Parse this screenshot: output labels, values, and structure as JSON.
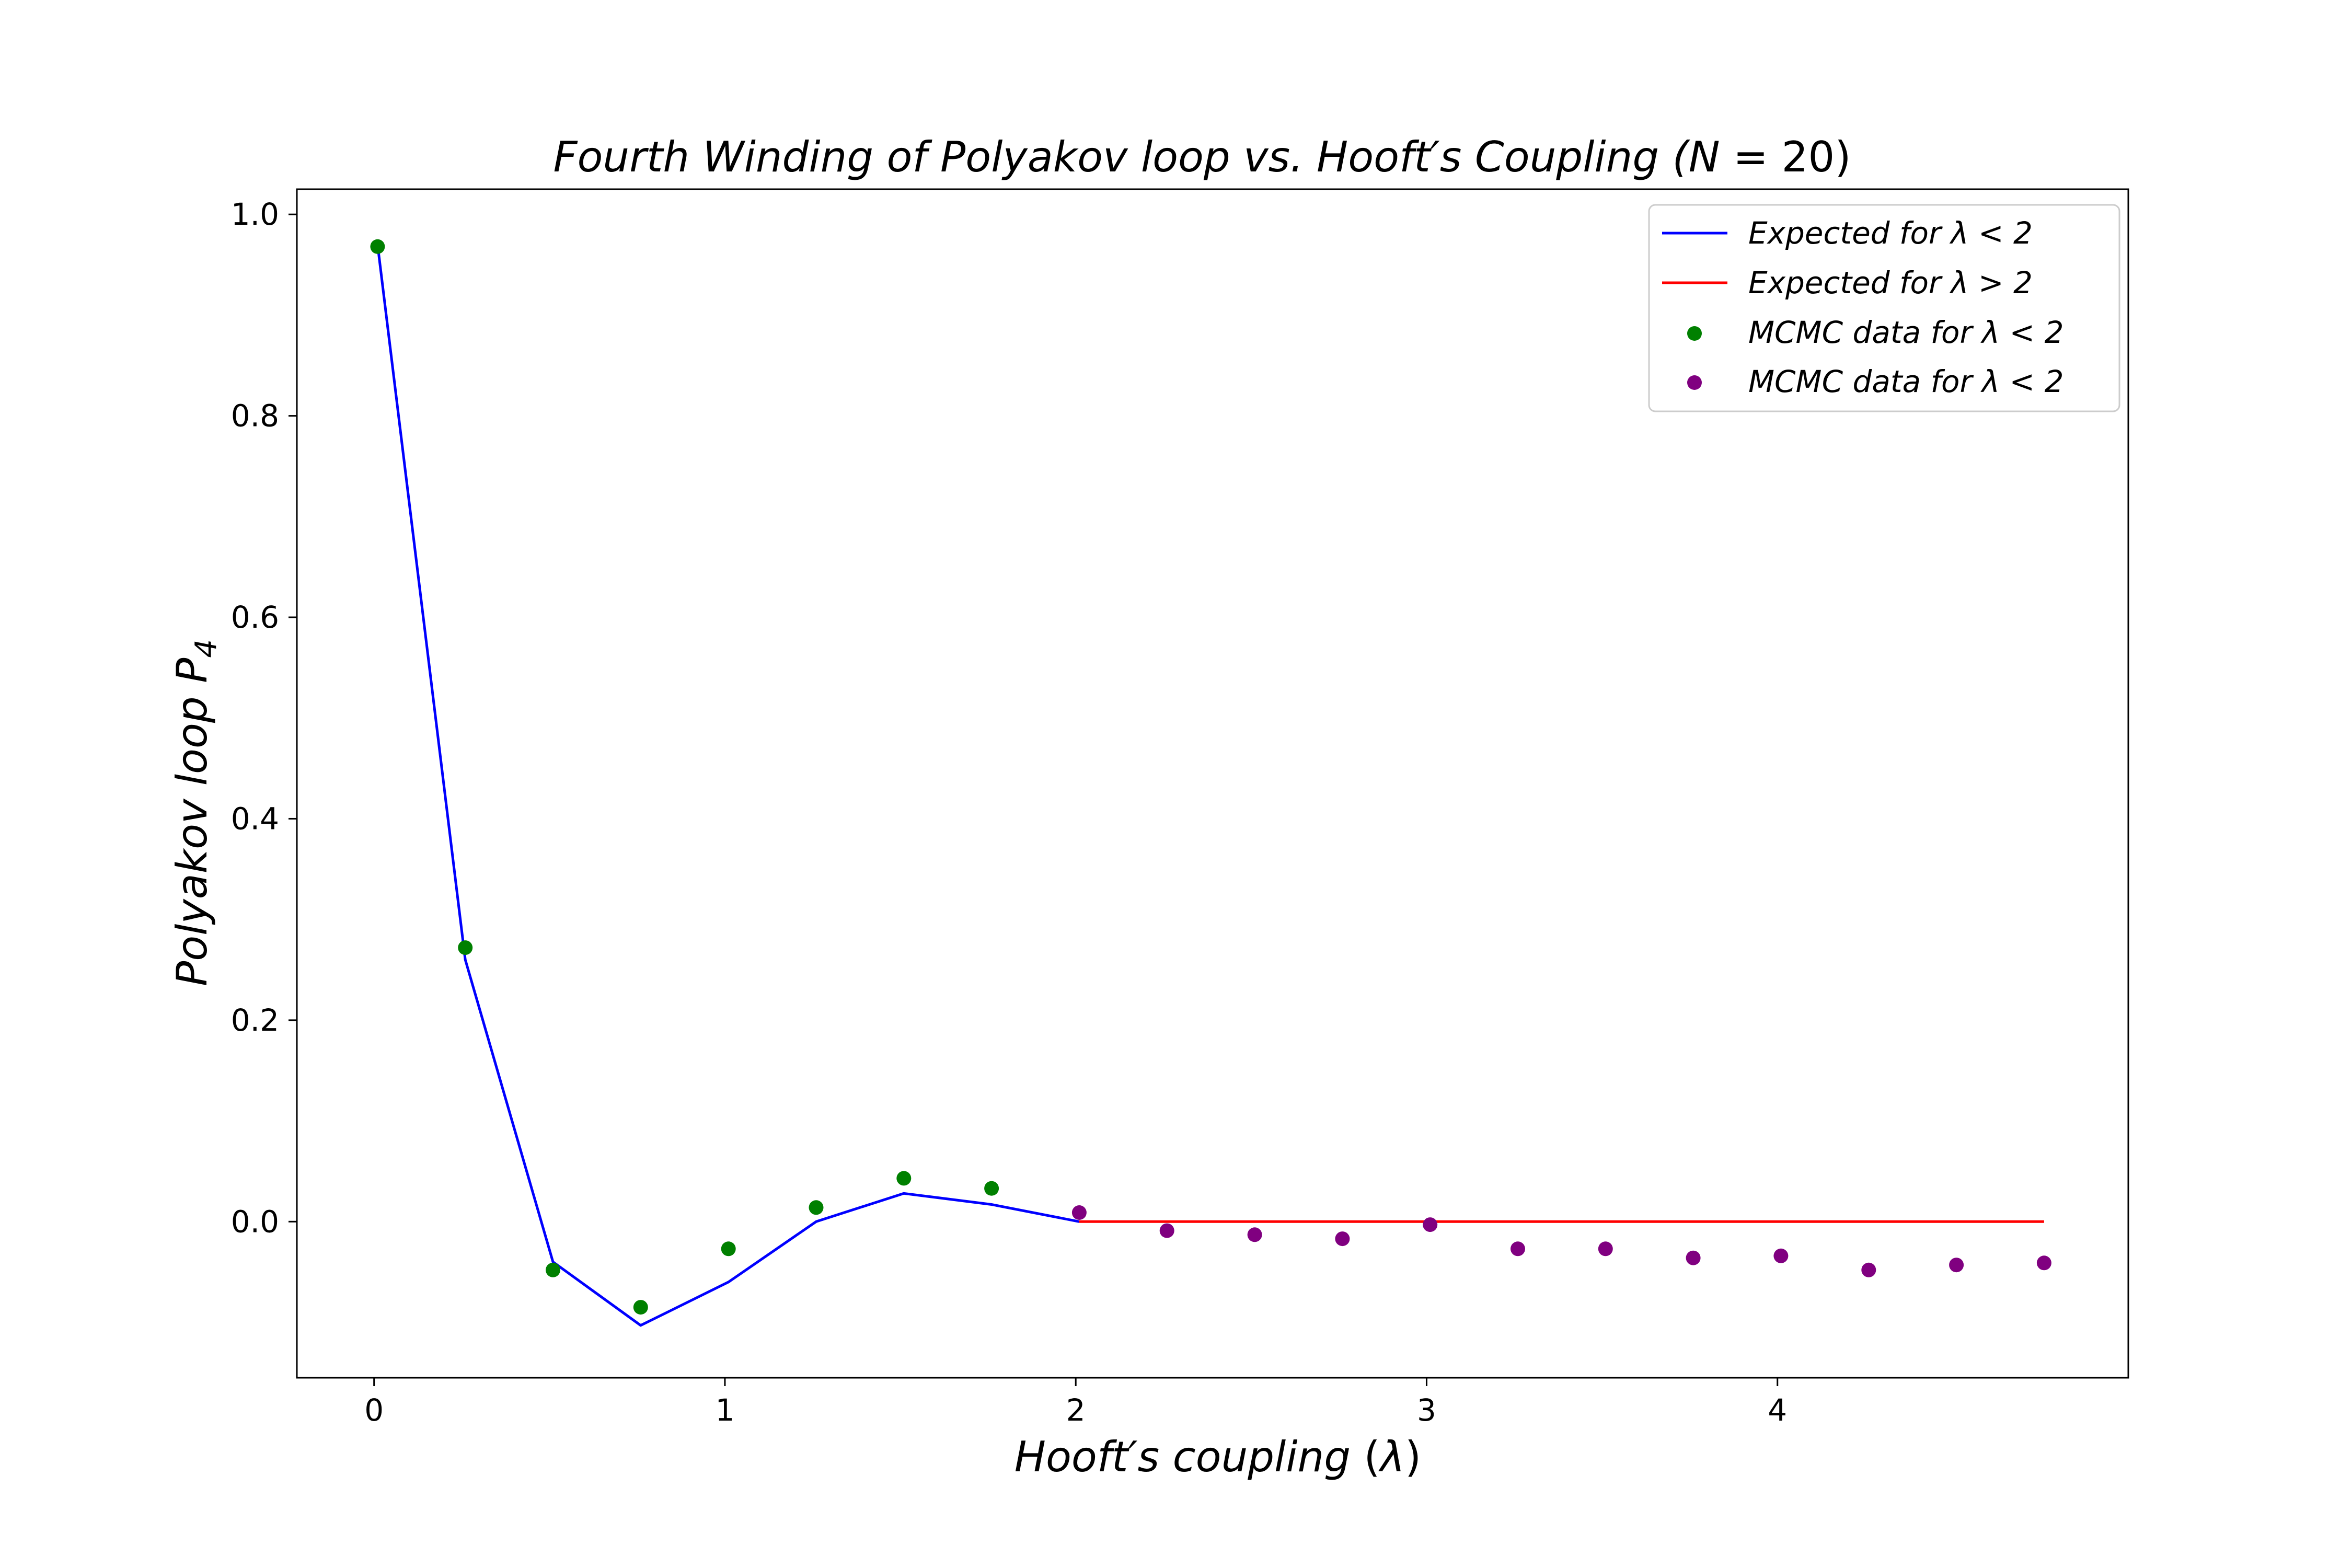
{
  "chart_data": {
    "type": "line",
    "title": "Fourth Winding of Polyakov loop vs. Hooft's Coupling (N = 20)",
    "xlabel": "Hooft's coupling (λ)",
    "ylabel": "Polyakov loop P4",
    "xlim": [
      -0.22,
      5.0
    ],
    "ylim": [
      -0.155,
      1.025
    ],
    "xticks": [
      0,
      1,
      2,
      3,
      4
    ],
    "yticks": [
      0.0,
      0.2,
      0.4,
      0.6,
      0.8,
      1.0
    ],
    "xtick_labels": [
      "0",
      "1",
      "2",
      "3",
      "4"
    ],
    "ytick_labels": [
      "0.0",
      "0.2",
      "0.4",
      "0.6",
      "0.8",
      "1.0"
    ],
    "grid": false,
    "legend_position": "top-right",
    "series": [
      {
        "name": "Expected for λ < 2",
        "kind": "line",
        "color": "#0000ff",
        "x": [
          0.01,
          0.26,
          0.51,
          0.76,
          1.01,
          1.26,
          1.51,
          1.76,
          2.01
        ],
        "y": [
          0.97,
          0.26,
          -0.04,
          -0.103,
          -0.06,
          0.0,
          0.028,
          0.017,
          0.0
        ]
      },
      {
        "name": "Expected for λ > 2",
        "kind": "line",
        "color": "#ff0000",
        "x": [
          2.01,
          4.76
        ],
        "y": [
          0.0,
          0.0
        ]
      },
      {
        "name": "MCMC data for λ < 2",
        "kind": "scatter",
        "color": "#008000",
        "x": [
          0.01,
          0.26,
          0.51,
          0.76,
          1.01,
          1.26,
          1.51,
          1.76
        ],
        "y": [
          0.968,
          0.272,
          -0.048,
          -0.085,
          -0.027,
          0.014,
          0.043,
          0.033
        ]
      },
      {
        "name": "MCMC data for λ < 2",
        "kind": "scatter",
        "color": "#800080",
        "x": [
          2.01,
          2.26,
          2.51,
          2.76,
          3.01,
          3.26,
          3.51,
          3.76,
          4.01,
          4.26,
          4.51,
          4.76
        ],
        "y": [
          0.009,
          -0.009,
          -0.013,
          -0.017,
          -0.003,
          -0.027,
          -0.027,
          -0.036,
          -0.034,
          -0.048,
          -0.043,
          -0.041
        ]
      }
    ]
  }
}
